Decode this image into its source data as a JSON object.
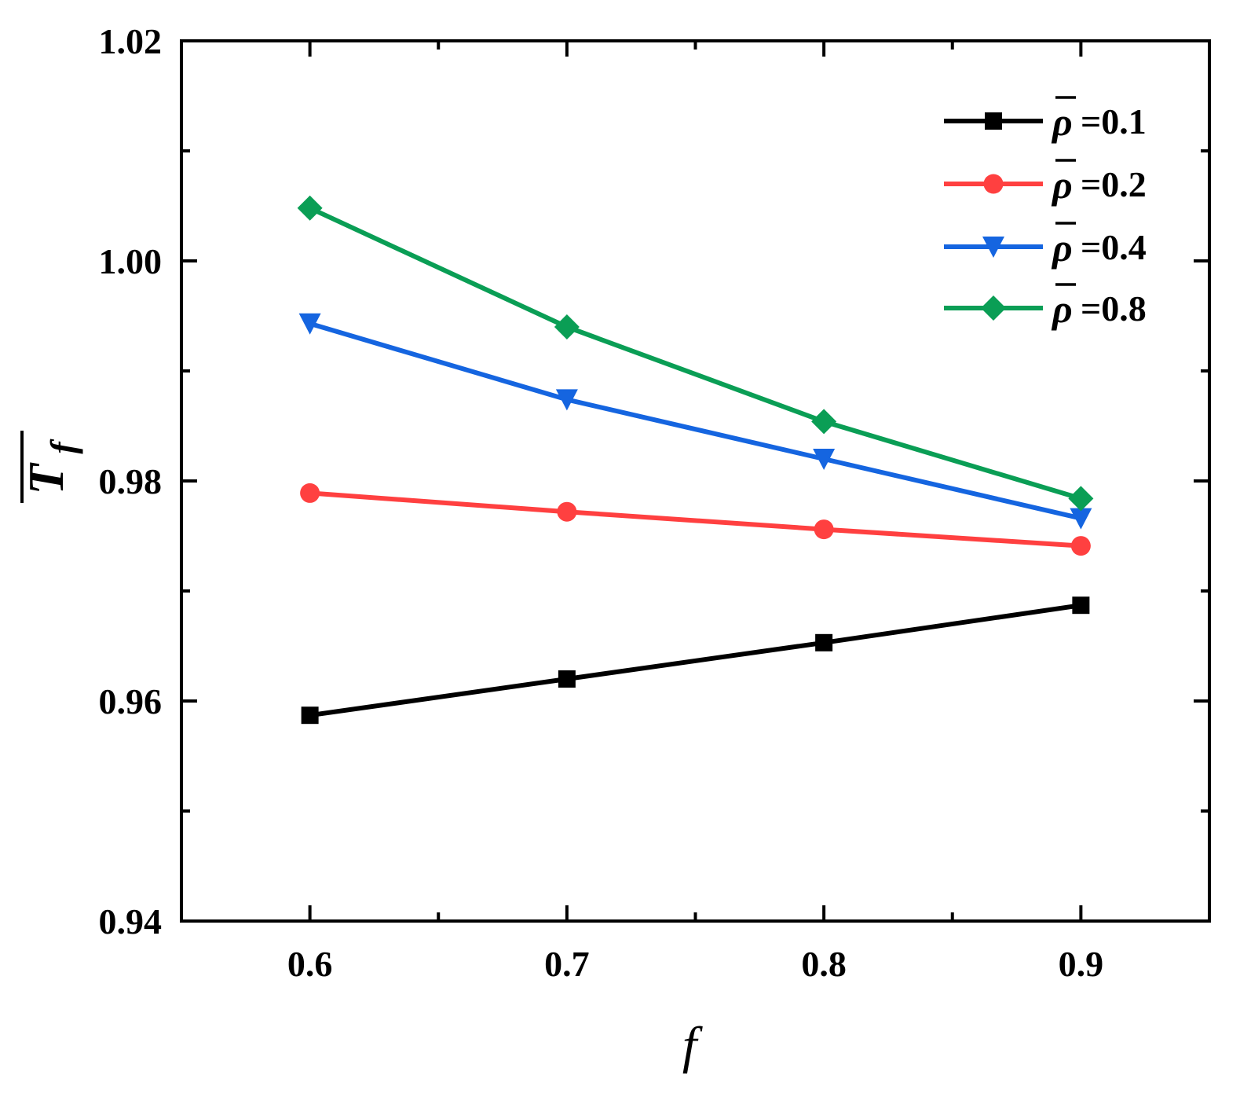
{
  "chart_data": {
    "type": "line",
    "title": "",
    "xlabel": "f",
    "ylabel": "T",
    "ylabel_subscript": "f",
    "x": [
      0.6,
      0.7,
      0.8,
      0.9
    ],
    "xlim": [
      0.55,
      0.95
    ],
    "ylim": [
      0.94,
      1.02
    ],
    "xticks": [
      0.6,
      0.7,
      0.8,
      0.9
    ],
    "xtick_labels": [
      "0.6",
      "0.7",
      "0.8",
      "0.9"
    ],
    "xminor": [
      0.55,
      0.65,
      0.75,
      0.85,
      0.95
    ],
    "yticks": [
      0.94,
      0.96,
      0.98,
      1.0,
      1.02
    ],
    "ytick_labels": [
      "0.94",
      "0.96",
      "0.98",
      "1.00",
      "1.02"
    ],
    "yminor": [
      0.95,
      0.97,
      0.99,
      1.01
    ],
    "grid": false,
    "legend_position": "top-right",
    "series": [
      {
        "name": "ρ =0.1",
        "legend_symbol": "ρ",
        "legend_value": "=0.1",
        "marker": "square",
        "color": "#000000",
        "values": [
          0.9587,
          0.962,
          0.9653,
          0.9687
        ]
      },
      {
        "name": "ρ =0.2",
        "legend_symbol": "ρ",
        "legend_value": "=0.2",
        "marker": "circle",
        "color": "#ff4040",
        "values": [
          0.9789,
          0.9772,
          0.9756,
          0.9741
        ]
      },
      {
        "name": "ρ =0.4",
        "legend_symbol": "ρ",
        "legend_value": "=0.4",
        "marker": "triangle-down",
        "color": "#1565e0",
        "values": [
          0.9943,
          0.9874,
          0.982,
          0.9766
        ]
      },
      {
        "name": "ρ =0.8",
        "legend_symbol": "ρ",
        "legend_value": "=0.8",
        "marker": "diamond",
        "color": "#0a9e55",
        "values": [
          1.0048,
          0.994,
          0.9854,
          0.9784
        ]
      }
    ]
  }
}
